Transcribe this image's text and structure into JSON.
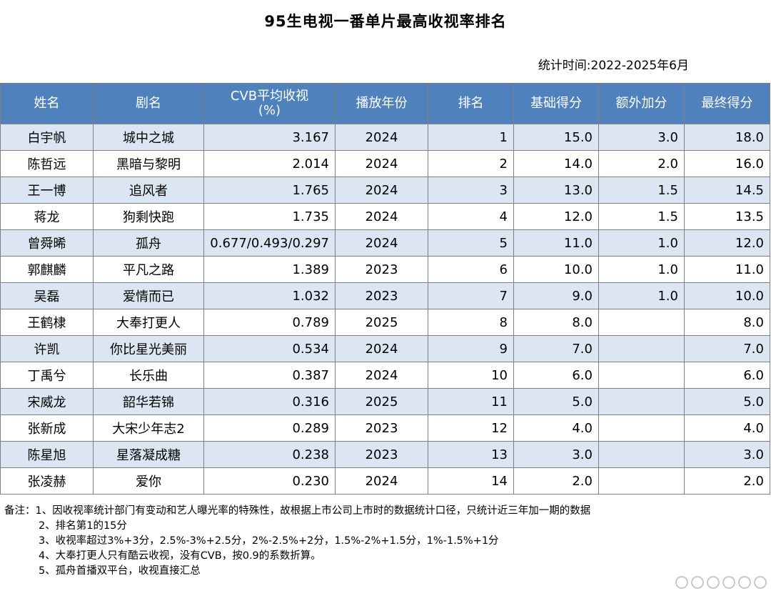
{
  "title": "95生电视一番单片最高收视率排名",
  "stat_time": "统计时间:2022-2025年6月",
  "columns": {
    "name": "姓名",
    "drama": "剧名",
    "cvb": "CVB平均收视\n(%)",
    "year": "播放年份",
    "rank": "排名",
    "base": "基础得分",
    "extra": "额外加分",
    "final": "最终得分"
  },
  "rows": [
    {
      "name": "白宇帆",
      "drama": "城中之城",
      "cvb": "3.167",
      "year": "2024",
      "rank": "1",
      "base": "15.0",
      "extra": "3.0",
      "final": "18.0"
    },
    {
      "name": "陈哲远",
      "drama": "黑暗与黎明",
      "cvb": "2.014",
      "year": "2024",
      "rank": "2",
      "base": "14.0",
      "extra": "2.0",
      "final": "16.0"
    },
    {
      "name": "王一博",
      "drama": "追风者",
      "cvb": "1.765",
      "year": "2024",
      "rank": "3",
      "base": "13.0",
      "extra": "1.5",
      "final": "14.5"
    },
    {
      "name": "蒋龙",
      "drama": "狗剩快跑",
      "cvb": "1.735",
      "year": "2024",
      "rank": "4",
      "base": "12.0",
      "extra": "1.5",
      "final": "13.5"
    },
    {
      "name": "曾舜晞",
      "drama": "孤舟",
      "cvb": "0.677/0.493/0.297",
      "year": "2024",
      "rank": "5",
      "base": "11.0",
      "extra": "1.0",
      "final": "12.0"
    },
    {
      "name": "郭麒麟",
      "drama": "平凡之路",
      "cvb": "1.389",
      "year": "2023",
      "rank": "6",
      "base": "10.0",
      "extra": "1.0",
      "final": "11.0"
    },
    {
      "name": "吴磊",
      "drama": "爱情而已",
      "cvb": "1.032",
      "year": "2023",
      "rank": "7",
      "base": "9.0",
      "extra": "1.0",
      "final": "10.0"
    },
    {
      "name": "王鹤棣",
      "drama": "大奉打更人",
      "cvb": "0.789",
      "year": "2025",
      "rank": "8",
      "base": "8.0",
      "extra": "",
      "final": "8.0"
    },
    {
      "name": "许凯",
      "drama": "你比星光美丽",
      "cvb": "0.534",
      "year": "2024",
      "rank": "9",
      "base": "7.0",
      "extra": "",
      "final": "7.0"
    },
    {
      "name": "丁禹兮",
      "drama": "长乐曲",
      "cvb": "0.387",
      "year": "2024",
      "rank": "10",
      "base": "6.0",
      "extra": "",
      "final": "6.0"
    },
    {
      "name": "宋威龙",
      "drama": "韶华若锦",
      "cvb": "0.316",
      "year": "2025",
      "rank": "11",
      "base": "5.0",
      "extra": "",
      "final": "5.0"
    },
    {
      "name": "张新成",
      "drama": "大宋少年志2",
      "cvb": "0.289",
      "year": "2023",
      "rank": "12",
      "base": "4.0",
      "extra": "",
      "final": "4.0"
    },
    {
      "name": "陈星旭",
      "drama": "星落凝成糖",
      "cvb": "0.238",
      "year": "2023",
      "rank": "13",
      "base": "3.0",
      "extra": "",
      "final": "3.0"
    },
    {
      "name": "张凌赫",
      "drama": "爱你",
      "cvb": "0.230",
      "year": "2024",
      "rank": "14",
      "base": "2.0",
      "extra": "",
      "final": "2.0"
    }
  ],
  "notes": [
    "备注：1、因收视率统计部门有变动和艺人曝光率的特殊性，故根据上市公司上市时的数据统计口径，只统计近三年加一期的数据",
    "2、排名第1的15分",
    "3、收视率超过3%+3分，2.5%-3%+2.5分，2%-2.5%+2分，1.5%-2%+1.5分，1%-1.5%+1分",
    "4、大奉打更人只有酷云收视，没有CVB，按0.9的系数折算。",
    "5、孤舟首播双平台，收视直接汇总"
  ],
  "colors": {
    "header_bg": "#4f81bd",
    "row_alt_bg": "#dce6f2",
    "border": "#7f7f7f"
  }
}
